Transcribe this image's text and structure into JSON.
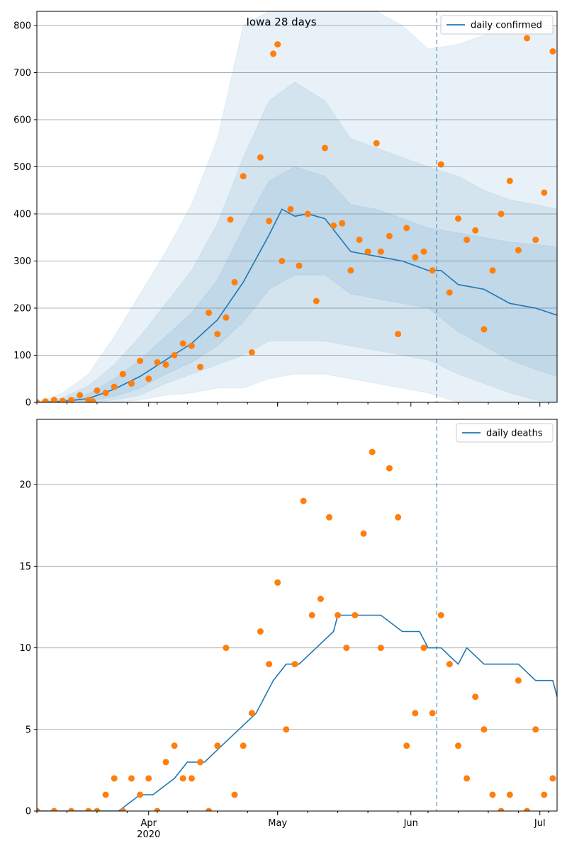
{
  "chart_data": [
    {
      "type": "line",
      "title": "Iowa 28 days",
      "ylim": [
        0,
        830
      ],
      "yticks": [
        0,
        100,
        200,
        300,
        400,
        500,
        600,
        700,
        800
      ],
      "grid": "horizontal",
      "legend": {
        "label": "daily confirmed",
        "placement": "top-right"
      },
      "forecast_start": "2020-06-07",
      "series": [
        {
          "name": "daily confirmed",
          "x": [
            "2020-03-06",
            "2020-03-12",
            "2020-03-18",
            "2020-03-24",
            "2020-03-30",
            "2020-04-05",
            "2020-04-11",
            "2020-04-17",
            "2020-04-23",
            "2020-04-29",
            "2020-05-02",
            "2020-05-05",
            "2020-05-08",
            "2020-05-12",
            "2020-05-18",
            "2020-05-24",
            "2020-05-30",
            "2020-06-05",
            "2020-06-08",
            "2020-06-12",
            "2020-06-18",
            "2020-06-24",
            "2020-06-30",
            "2020-07-05"
          ],
          "values": [
            0,
            2,
            8,
            28,
            55,
            90,
            125,
            175,
            255,
            355,
            410,
            395,
            400,
            390,
            320,
            310,
            300,
            280,
            280,
            250,
            240,
            210,
            200,
            185
          ]
        }
      ],
      "intervals": [
        {
          "x": [
            "2020-03-06",
            "2020-03-12",
            "2020-03-18",
            "2020-03-24",
            "2020-03-30",
            "2020-04-05",
            "2020-04-11",
            "2020-04-17",
            "2020-04-23",
            "2020-04-29",
            "2020-05-05",
            "2020-05-12",
            "2020-05-18",
            "2020-05-24",
            "2020-05-30",
            "2020-06-05",
            "2020-06-12",
            "2020-06-18",
            "2020-06-24",
            "2020-06-30",
            "2020-07-05"
          ],
          "lower": [
            0,
            0,
            0,
            0,
            5,
            15,
            20,
            30,
            30,
            50,
            60,
            60,
            50,
            40,
            30,
            20,
            0,
            0,
            0,
            0,
            0
          ],
          "upper": [
            0,
            20,
            60,
            140,
            230,
            320,
            420,
            560,
            800,
            830,
            830,
            830,
            830,
            830,
            800,
            750,
            760,
            780,
            790,
            790,
            800
          ]
        },
        {
          "x": [
            "2020-03-06",
            "2020-03-12",
            "2020-03-18",
            "2020-03-24",
            "2020-03-30",
            "2020-04-05",
            "2020-04-11",
            "2020-04-17",
            "2020-04-23",
            "2020-04-29",
            "2020-05-05",
            "2020-05-12",
            "2020-05-18",
            "2020-05-24",
            "2020-05-30",
            "2020-06-05",
            "2020-06-12",
            "2020-06-18",
            "2020-06-24",
            "2020-06-30",
            "2020-07-05"
          ],
          "lower": [
            0,
            0,
            0,
            5,
            15,
            40,
            60,
            80,
            100,
            130,
            130,
            130,
            120,
            110,
            100,
            90,
            60,
            40,
            20,
            5,
            0
          ],
          "upper": [
            0,
            10,
            35,
            80,
            140,
            210,
            280,
            380,
            520,
            640,
            680,
            640,
            560,
            540,
            520,
            500,
            480,
            450,
            430,
            420,
            410
          ]
        },
        {
          "x": [
            "2020-03-06",
            "2020-03-12",
            "2020-03-18",
            "2020-03-24",
            "2020-03-30",
            "2020-04-05",
            "2020-04-11",
            "2020-04-17",
            "2020-04-23",
            "2020-04-29",
            "2020-05-05",
            "2020-05-12",
            "2020-05-18",
            "2020-05-24",
            "2020-05-30",
            "2020-06-05",
            "2020-06-12",
            "2020-06-18",
            "2020-06-24",
            "2020-06-30",
            "2020-07-05"
          ],
          "lower": [
            0,
            0,
            2,
            12,
            30,
            60,
            85,
            120,
            170,
            240,
            270,
            270,
            230,
            220,
            210,
            200,
            150,
            120,
            90,
            70,
            55
          ],
          "upper": [
            0,
            5,
            18,
            50,
            90,
            140,
            190,
            260,
            370,
            470,
            500,
            480,
            420,
            410,
            390,
            370,
            360,
            350,
            340,
            335,
            330
          ]
        }
      ],
      "observed": {
        "x": [
          "2020-03-06",
          "2020-03-08",
          "2020-03-10",
          "2020-03-12",
          "2020-03-14",
          "2020-03-16",
          "2020-03-18",
          "2020-03-19",
          "2020-03-20",
          "2020-03-22",
          "2020-03-24",
          "2020-03-26",
          "2020-03-28",
          "2020-03-30",
          "2020-04-01",
          "2020-04-03",
          "2020-04-05",
          "2020-04-07",
          "2020-04-09",
          "2020-04-11",
          "2020-04-13",
          "2020-04-15",
          "2020-04-17",
          "2020-04-19",
          "2020-04-20",
          "2020-04-21",
          "2020-04-23",
          "2020-04-25",
          "2020-04-27",
          "2020-04-29",
          "2020-04-30",
          "2020-05-01",
          "2020-05-02",
          "2020-05-04",
          "2020-05-06",
          "2020-05-08",
          "2020-05-10",
          "2020-05-12",
          "2020-05-14",
          "2020-05-16",
          "2020-05-18",
          "2020-05-20",
          "2020-05-22",
          "2020-05-24",
          "2020-05-25",
          "2020-05-27",
          "2020-05-29",
          "2020-05-31",
          "2020-06-02",
          "2020-06-04",
          "2020-06-06",
          "2020-06-08",
          "2020-06-10",
          "2020-06-12",
          "2020-06-14",
          "2020-06-16",
          "2020-06-18",
          "2020-06-20",
          "2020-06-22",
          "2020-06-24",
          "2020-06-26",
          "2020-06-28",
          "2020-06-30",
          "2020-07-02",
          "2020-07-04"
        ],
        "values": [
          0,
          2,
          5,
          3,
          5,
          15,
          5,
          2,
          25,
          20,
          33,
          60,
          40,
          88,
          50,
          85,
          80,
          100,
          125,
          120,
          75,
          190,
          145,
          180,
          388,
          255,
          480,
          106,
          520,
          385,
          740,
          760,
          300,
          410,
          290,
          400,
          215,
          540,
          375,
          380,
          280,
          345,
          320,
          550,
          320,
          353,
          145,
          370,
          308,
          320,
          280,
          505,
          233,
          390,
          345,
          365,
          155,
          280,
          400,
          470,
          323,
          773,
          345,
          445,
          745
        ]
      }
    },
    {
      "type": "line",
      "title": "",
      "ylim": [
        0,
        24
      ],
      "yticks": [
        0,
        5,
        10,
        15,
        20
      ],
      "grid": "horizontal",
      "legend": {
        "label": "daily deaths",
        "placement": "top-right"
      },
      "forecast_start": "2020-06-07",
      "xticks_major": [
        "Apr",
        "May",
        "Jun",
        "Jul"
      ],
      "xticks_major_dates": [
        "2020-04-01",
        "2020-05-01",
        "2020-06-01",
        "2020-07-01"
      ],
      "year_label": "2020",
      "series": [
        {
          "name": "daily deaths",
          "x": [
            "2020-03-06",
            "2020-03-18",
            "2020-03-25",
            "2020-03-30",
            "2020-04-02",
            "2020-04-07",
            "2020-04-10",
            "2020-04-14",
            "2020-04-18",
            "2020-04-22",
            "2020-04-26",
            "2020-04-30",
            "2020-05-03",
            "2020-05-06",
            "2020-05-10",
            "2020-05-14",
            "2020-05-15",
            "2020-05-20",
            "2020-05-25",
            "2020-05-30",
            "2020-06-03",
            "2020-06-05",
            "2020-06-08",
            "2020-06-12",
            "2020-06-14",
            "2020-06-18",
            "2020-06-22",
            "2020-06-26",
            "2020-06-30",
            "2020-07-04",
            "2020-07-05"
          ],
          "values": [
            0,
            0,
            0,
            1,
            1,
            2,
            3,
            3,
            4,
            5,
            6,
            8,
            9,
            9,
            10,
            11,
            12,
            12,
            12,
            11,
            11,
            10,
            10,
            9,
            10,
            9,
            9,
            9,
            8,
            8,
            7
          ]
        }
      ],
      "observed": {
        "x": [
          "2020-03-06",
          "2020-03-10",
          "2020-03-14",
          "2020-03-18",
          "2020-03-20",
          "2020-03-22",
          "2020-03-24",
          "2020-03-26",
          "2020-03-28",
          "2020-03-30",
          "2020-04-01",
          "2020-04-03",
          "2020-04-05",
          "2020-04-07",
          "2020-04-09",
          "2020-04-11",
          "2020-04-13",
          "2020-04-15",
          "2020-04-17",
          "2020-04-19",
          "2020-04-21",
          "2020-04-23",
          "2020-04-25",
          "2020-04-27",
          "2020-04-29",
          "2020-05-01",
          "2020-05-03",
          "2020-05-05",
          "2020-05-07",
          "2020-05-09",
          "2020-05-11",
          "2020-05-13",
          "2020-05-15",
          "2020-05-17",
          "2020-05-19",
          "2020-05-21",
          "2020-05-23",
          "2020-05-25",
          "2020-05-27",
          "2020-05-29",
          "2020-05-31",
          "2020-06-02",
          "2020-06-04",
          "2020-06-06",
          "2020-06-08",
          "2020-06-10",
          "2020-06-12",
          "2020-06-14",
          "2020-06-16",
          "2020-06-18",
          "2020-06-20",
          "2020-06-22",
          "2020-06-24",
          "2020-06-26",
          "2020-06-28",
          "2020-06-30",
          "2020-07-02",
          "2020-07-04"
        ],
        "values": [
          0,
          0,
          0,
          0,
          0,
          1,
          2,
          0,
          2,
          1,
          2,
          0,
          3,
          4,
          2,
          2,
          3,
          0,
          4,
          10,
          1,
          4,
          6,
          11,
          9,
          14,
          5,
          9,
          19,
          12,
          13,
          18,
          12,
          10,
          12,
          17,
          22,
          10,
          21,
          18,
          4,
          6,
          10,
          6,
          12,
          9,
          4,
          2,
          7,
          5,
          1,
          0,
          1,
          8,
          0,
          5,
          1,
          2
        ]
      }
    }
  ]
}
